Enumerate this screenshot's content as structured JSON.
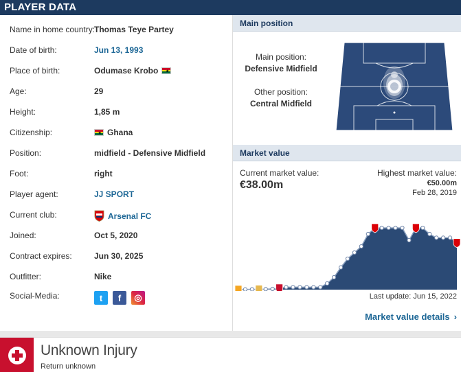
{
  "header": {
    "title": "Player data"
  },
  "player": [
    {
      "label": "Name in home country:",
      "value": "Thomas Teye Partey",
      "kind": "text"
    },
    {
      "label": "Date of birth:",
      "value": "Jun 13, 1993",
      "kind": "link"
    },
    {
      "label": "Place of birth:",
      "value": "Odumase Krobo",
      "kind": "flag"
    },
    {
      "label": "Age:",
      "value": "29",
      "kind": "text"
    },
    {
      "label": "Height:",
      "value": "1,85 m",
      "kind": "text"
    },
    {
      "label": "Citizenship:",
      "value": "Ghana",
      "kind": "flag-before"
    },
    {
      "label": "Position:",
      "value": "midfield - Defensive Midfield",
      "kind": "text"
    },
    {
      "label": "Foot:",
      "value": "right",
      "kind": "text"
    },
    {
      "label": "Player agent:",
      "value": "JJ SPORT",
      "kind": "link"
    },
    {
      "label": "Current club:",
      "value": "Arsenal FC",
      "kind": "club"
    },
    {
      "label": "Joined:",
      "value": "Oct 5, 2020",
      "kind": "text"
    },
    {
      "label": "Contract expires:",
      "value": "Jun 30, 2025",
      "kind": "text"
    },
    {
      "label": "Outfitter:",
      "value": "Nike",
      "kind": "text"
    },
    {
      "label": "Social-Media:",
      "value": "",
      "kind": "social"
    }
  ],
  "social": [
    {
      "icon": "twitter-icon",
      "glyph": "t",
      "cls": "tw"
    },
    {
      "icon": "facebook-icon",
      "glyph": "f",
      "cls": "fb"
    },
    {
      "icon": "instagram-icon",
      "glyph": "◎",
      "cls": "ig"
    }
  ],
  "position_section": {
    "title": "Main position",
    "main_label": "Main position:",
    "main_value": "Defensive Midfield",
    "other_label": "Other position:",
    "other_value": "Central Midfield"
  },
  "market_section": {
    "title": "Market value",
    "current_label": "Current market value:",
    "current_value": "€38.00m",
    "highest_label": "Highest market value:",
    "highest_value": "€50.00m",
    "highest_date": "Feb 28, 2019",
    "last_update": "Last update: Jun 15, 2022",
    "details_link": "Market value details"
  },
  "chart_data": {
    "type": "area",
    "title": "",
    "xlabel": "",
    "ylabel": "",
    "ylim": [
      0,
      50
    ],
    "series": [
      {
        "values": [
          0.1,
          0.2,
          0.3,
          0.3,
          0.4,
          0.6,
          1.2,
          2,
          2,
          2,
          2,
          2,
          2,
          5,
          10,
          18,
          25,
          30,
          35,
          45,
          50,
          50,
          50,
          50,
          50,
          40,
          50,
          50,
          45,
          42,
          42,
          42,
          38
        ]
      }
    ]
  },
  "injury": {
    "title": "Unknown Injury",
    "subtitle": "Return unknown"
  },
  "colors": {
    "header": "#1d3a5f",
    "link": "#1d6796",
    "chart_fill": "#2b4a75",
    "pitch": "#2c4a7a",
    "injury": "#c8102e"
  }
}
